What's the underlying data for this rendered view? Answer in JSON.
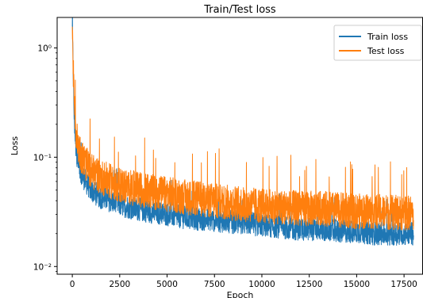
{
  "chart_data": {
    "type": "line",
    "title": "Train/Test loss",
    "xlabel": "Epoch",
    "ylabel": "Loss",
    "xlim": [
      -800,
      18500
    ],
    "ylim": [
      0.0085,
      1.9
    ],
    "yscale": "log",
    "x_ticks": [
      0,
      2500,
      5000,
      7500,
      10000,
      12500,
      15000,
      17500
    ],
    "x_tick_labels": [
      "0",
      "2500",
      "5000",
      "7500",
      "10000",
      "12500",
      "15000",
      "17500"
    ],
    "y_ticks": [
      0.01,
      0.1,
      1
    ],
    "y_tick_labels": [
      "10⁻²",
      "10⁻¹",
      "10⁰"
    ],
    "grid": false,
    "legend": {
      "position": "top-right"
    },
    "series": [
      {
        "name": "Train loss",
        "color": "#1f77b4",
        "x": [
          0,
          100,
          200,
          300,
          500,
          750,
          1000,
          1500,
          2000,
          2500,
          3000,
          4000,
          5000,
          6000,
          7000,
          8000,
          9000,
          10000,
          11000,
          12000,
          13000,
          14000,
          15000,
          16000,
          17000,
          18000
        ],
        "values": [
          1.45,
          0.22,
          0.12,
          0.09,
          0.07,
          0.058,
          0.05,
          0.043,
          0.04,
          0.037,
          0.035,
          0.032,
          0.03,
          0.028,
          0.027,
          0.026,
          0.025,
          0.024,
          0.023,
          0.022,
          0.022,
          0.021,
          0.021,
          0.02,
          0.02,
          0.02
        ],
        "spread_factor": 1.28
      },
      {
        "name": "Test loss",
        "color": "#ff7f0e",
        "x": [
          0,
          100,
          200,
          300,
          500,
          750,
          1000,
          1500,
          2000,
          2500,
          3000,
          4000,
          5000,
          6000,
          7000,
          8000,
          9000,
          10000,
          11000,
          12000,
          13000,
          14000,
          15000,
          16000,
          17000,
          18000
        ],
        "values": [
          1.45,
          0.3,
          0.17,
          0.13,
          0.1,
          0.085,
          0.075,
          0.066,
          0.06,
          0.056,
          0.053,
          0.049,
          0.046,
          0.043,
          0.041,
          0.039,
          0.037,
          0.036,
          0.035,
          0.034,
          0.034,
          0.033,
          0.032,
          0.032,
          0.031,
          0.031
        ],
        "spread_factor": 1.45
      }
    ]
  }
}
